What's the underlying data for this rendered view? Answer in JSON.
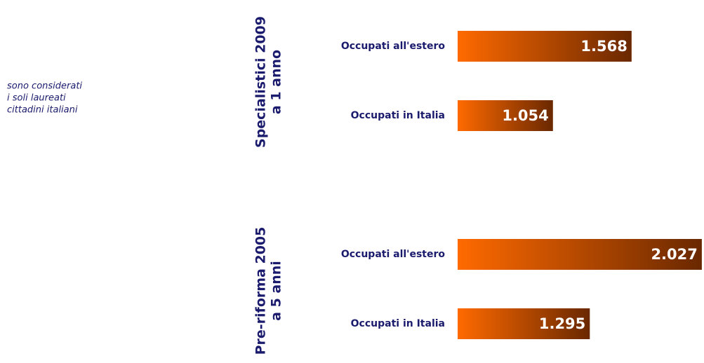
{
  "chart_data": {
    "type": "bar",
    "note": [
      "sono considerati",
      "i soli laureati",
      "cittadini italiani"
    ],
    "groups": [
      {
        "label": [
          "Specialistici 2009",
          "a 1 anno"
        ],
        "categories": [
          "Occupati all'estero",
          "Occupati in Italia"
        ],
        "values": [
          1568,
          1054
        ],
        "value_labels": [
          "1.568",
          "1.054"
        ]
      },
      {
        "label": [
          "Pre-riforma 2005",
          "a 5 anni"
        ],
        "categories": [
          "Occupati all'estero",
          "Occupati in Italia"
        ],
        "values": [
          2027,
          1295
        ],
        "value_labels": [
          "2.027",
          "1.295"
        ]
      }
    ],
    "color": [
      "#ff6a00",
      "#6a2800"
    ],
    "text_color": "#1b1b6e"
  }
}
